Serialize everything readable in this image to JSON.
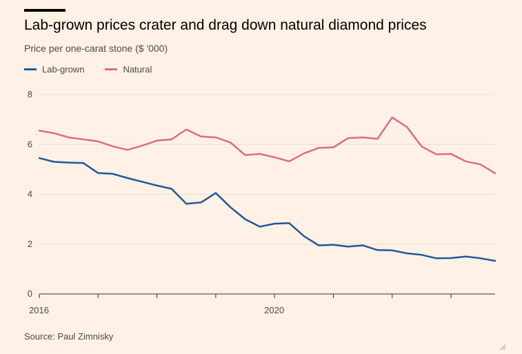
{
  "title": "Lab-grown prices crater and drag down natural diamond prices",
  "subtitle": "Price per one-carat stone ($ '000)",
  "source": "Source: Paul Zimnisky",
  "colors": {
    "lab": "#1f5896",
    "natural": "#e0688e",
    "background": "#fff1e5",
    "grid": "#e8ddd3"
  },
  "chart_data": {
    "type": "line",
    "title": "Lab-grown prices crater and drag down natural diamond prices",
    "subtitle": "Price per one-carat stone ($ '000)",
    "xlabel": "",
    "ylabel": "",
    "x_ticks": [
      "2016",
      "2020"
    ],
    "y_ticks": [
      "0",
      "2",
      "4",
      "6",
      "8"
    ],
    "xlim": [
      2016,
      2023.75
    ],
    "ylim": [
      0,
      8
    ],
    "grid": true,
    "legend": "top-left",
    "series": [
      {
        "name": "Lab-grown",
        "x": [
          2016,
          2016.25,
          2016.5,
          2016.75,
          2017,
          2017.25,
          2017.5,
          2017.75,
          2018,
          2018.25,
          2018.5,
          2018.75,
          2019,
          2019.25,
          2019.5,
          2019.75,
          2020,
          2020.25,
          2020.5,
          2020.75,
          2021,
          2021.25,
          2021.5,
          2021.75,
          2022,
          2022.25,
          2022.5,
          2022.75,
          2023,
          2023.25,
          2023.5,
          2023.75
        ],
        "values": [
          5.45,
          5.3,
          5.27,
          5.25,
          4.85,
          4.82,
          4.65,
          4.5,
          4.35,
          4.22,
          3.62,
          3.67,
          4.05,
          3.48,
          3.0,
          2.7,
          2.82,
          2.84,
          2.32,
          1.95,
          1.97,
          1.9,
          1.95,
          1.76,
          1.75,
          1.63,
          1.57,
          1.43,
          1.44,
          1.5,
          1.43,
          1.33
        ]
      },
      {
        "name": "Natural",
        "x": [
          2016,
          2016.25,
          2016.5,
          2016.75,
          2017,
          2017.25,
          2017.5,
          2017.75,
          2018,
          2018.25,
          2018.5,
          2018.75,
          2019,
          2019.25,
          2019.5,
          2019.75,
          2020,
          2020.25,
          2020.5,
          2020.75,
          2021,
          2021.25,
          2021.5,
          2021.75,
          2022,
          2022.25,
          2022.5,
          2022.75,
          2023,
          2023.25,
          2023.5,
          2023.75
        ],
        "values": [
          6.55,
          6.45,
          6.28,
          6.2,
          6.12,
          5.92,
          5.78,
          5.95,
          6.15,
          6.2,
          6.6,
          6.32,
          6.28,
          6.08,
          5.57,
          5.62,
          5.48,
          5.32,
          5.64,
          5.86,
          5.88,
          6.25,
          6.28,
          6.22,
          7.08,
          6.7,
          5.92,
          5.6,
          5.62,
          5.32,
          5.2,
          4.84
        ]
      }
    ]
  }
}
